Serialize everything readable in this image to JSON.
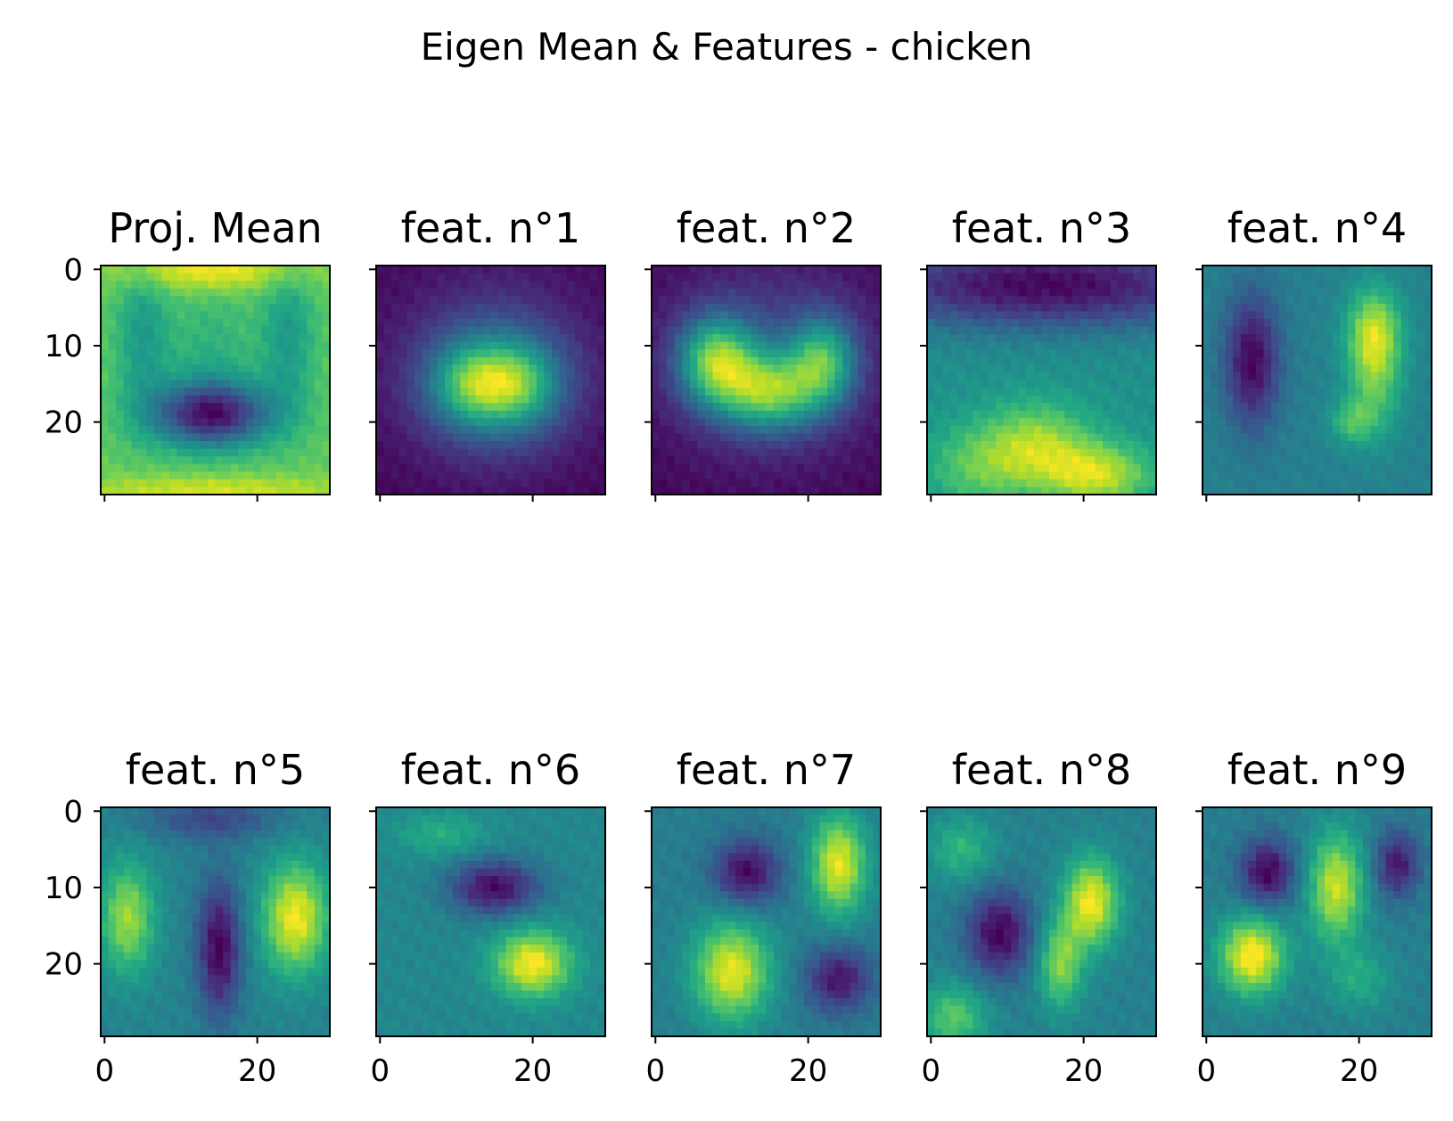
{
  "chart_data": {
    "type": "heatmap",
    "title": "Eigen Mean & Features - chicken",
    "colormap": "viridis",
    "image_size": [
      30,
      30
    ],
    "grid": false,
    "layout": "2 rows x 5 columns",
    "x_ticks": [
      "0",
      "20"
    ],
    "y_ticks": [
      "0",
      "10",
      "20"
    ],
    "panels": [
      {
        "title": "Proj. Mean",
        "background": 0.72,
        "blobs": [
          {
            "x": 14,
            "y": 19,
            "sx": 5.5,
            "sy": 3,
            "a": -0.72
          },
          {
            "x": 14,
            "y": 11,
            "sx": 4,
            "sy": 6,
            "a": -0.12
          },
          {
            "x": 5,
            "y": 9,
            "sx": 2.5,
            "sy": 7,
            "a": -0.22
          },
          {
            "x": 24,
            "y": 9,
            "sx": 2.5,
            "sy": 7,
            "a": -0.22
          },
          {
            "x": 14,
            "y": 0,
            "sx": 9,
            "sy": 2,
            "a": 0.25
          },
          {
            "x": 14,
            "y": 29,
            "sx": 14,
            "sy": 1.5,
            "a": 0.18
          }
        ]
      },
      {
        "title": "feat. n°1",
        "background": 0.08,
        "blobs": [
          {
            "x": 15,
            "y": 15,
            "sx": 7,
            "sy": 6,
            "a": 0.45
          },
          {
            "x": 12,
            "y": 15,
            "sx": 3.5,
            "sy": 3.5,
            "a": 0.45
          },
          {
            "x": 18,
            "y": 15,
            "sx": 3.5,
            "sy": 3.5,
            "a": 0.45
          },
          {
            "x": 15,
            "y": 12,
            "sx": 9,
            "sy": 9,
            "a": 0.15
          }
        ]
      },
      {
        "title": "feat. n°2",
        "background": 0.1,
        "blobs": [
          {
            "x": 8,
            "y": 12,
            "sx": 3.5,
            "sy": 4,
            "a": 0.75
          },
          {
            "x": 15,
            "y": 16,
            "sx": 4.5,
            "sy": 3.5,
            "a": 0.7
          },
          {
            "x": 22,
            "y": 12,
            "sx": 3,
            "sy": 4,
            "a": 0.6
          },
          {
            "x": 15,
            "y": 12,
            "sx": 10,
            "sy": 9,
            "a": 0.25
          }
        ]
      },
      {
        "title": "feat. n°3",
        "background": 0.5,
        "blobs": [
          {
            "x": 15,
            "y": 2,
            "sx": 18,
            "sy": 4,
            "a": -0.42
          },
          {
            "x": 14,
            "y": 23,
            "sx": 5,
            "sy": 4,
            "a": 0.3
          },
          {
            "x": 22,
            "y": 27,
            "sx": 5,
            "sy": 3,
            "a": 0.35
          },
          {
            "x": 6,
            "y": 26,
            "sx": 5,
            "sy": 4,
            "a": 0.2
          }
        ]
      },
      {
        "title": "feat. n°4",
        "background": 0.45,
        "blobs": [
          {
            "x": 6,
            "y": 12,
            "sx": 2.5,
            "sy": 6,
            "a": -0.45
          },
          {
            "x": 22,
            "y": 8,
            "sx": 2.5,
            "sy": 4,
            "a": 0.45
          },
          {
            "x": 22,
            "y": 15,
            "sx": 2.5,
            "sy": 5,
            "a": 0.3
          },
          {
            "x": 19,
            "y": 20,
            "sx": 2,
            "sy": 2,
            "a": 0.25
          }
        ]
      },
      {
        "title": "feat. n°5",
        "background": 0.4,
        "blobs": [
          {
            "x": 3,
            "y": 14,
            "sx": 2.5,
            "sy": 5,
            "a": 0.38
          },
          {
            "x": 25,
            "y": 14,
            "sx": 3,
            "sy": 5,
            "a": 0.5
          },
          {
            "x": 15,
            "y": 18,
            "sx": 2,
            "sy": 6,
            "a": -0.4
          },
          {
            "x": 14,
            "y": 1,
            "sx": 6,
            "sy": 2,
            "a": -0.2
          }
        ]
      },
      {
        "title": "feat. n°6",
        "background": 0.4,
        "blobs": [
          {
            "x": 15,
            "y": 10,
            "sx": 4,
            "sy": 2.5,
            "a": -0.4
          },
          {
            "x": 20,
            "y": 20,
            "sx": 3.5,
            "sy": 3,
            "a": 0.5
          },
          {
            "x": 8,
            "y": 3,
            "sx": 4,
            "sy": 2,
            "a": 0.15
          }
        ]
      },
      {
        "title": "feat. n°7",
        "background": 0.4,
        "blobs": [
          {
            "x": 12,
            "y": 8,
            "sx": 3,
            "sy": 3,
            "a": -0.38
          },
          {
            "x": 24,
            "y": 7,
            "sx": 2.5,
            "sy": 4.5,
            "a": 0.52
          },
          {
            "x": 10,
            "y": 21,
            "sx": 3.5,
            "sy": 4.5,
            "a": 0.52
          },
          {
            "x": 24,
            "y": 22,
            "sx": 3,
            "sy": 3,
            "a": -0.35
          }
        ]
      },
      {
        "title": "feat. n°8",
        "background": 0.4,
        "blobs": [
          {
            "x": 9,
            "y": 16,
            "sx": 3,
            "sy": 4,
            "a": -0.38
          },
          {
            "x": 21,
            "y": 12,
            "sx": 2.5,
            "sy": 4,
            "a": 0.5
          },
          {
            "x": 17,
            "y": 20,
            "sx": 2,
            "sy": 4,
            "a": 0.35
          },
          {
            "x": 4,
            "y": 5,
            "sx": 3,
            "sy": 3,
            "a": 0.2
          },
          {
            "x": 3,
            "y": 27,
            "sx": 3,
            "sy": 3,
            "a": 0.28
          }
        ]
      },
      {
        "title": "feat. n°9",
        "background": 0.4,
        "blobs": [
          {
            "x": 8,
            "y": 8,
            "sx": 2.5,
            "sy": 3,
            "a": -0.35
          },
          {
            "x": 6,
            "y": 19,
            "sx": 3,
            "sy": 3.5,
            "a": 0.5
          },
          {
            "x": 17,
            "y": 10,
            "sx": 2.5,
            "sy": 5,
            "a": 0.42
          },
          {
            "x": 25,
            "y": 7,
            "sx": 2,
            "sy": 3,
            "a": -0.3
          },
          {
            "x": 20,
            "y": 22,
            "sx": 3,
            "sy": 3,
            "a": 0.15
          }
        ]
      }
    ]
  }
}
